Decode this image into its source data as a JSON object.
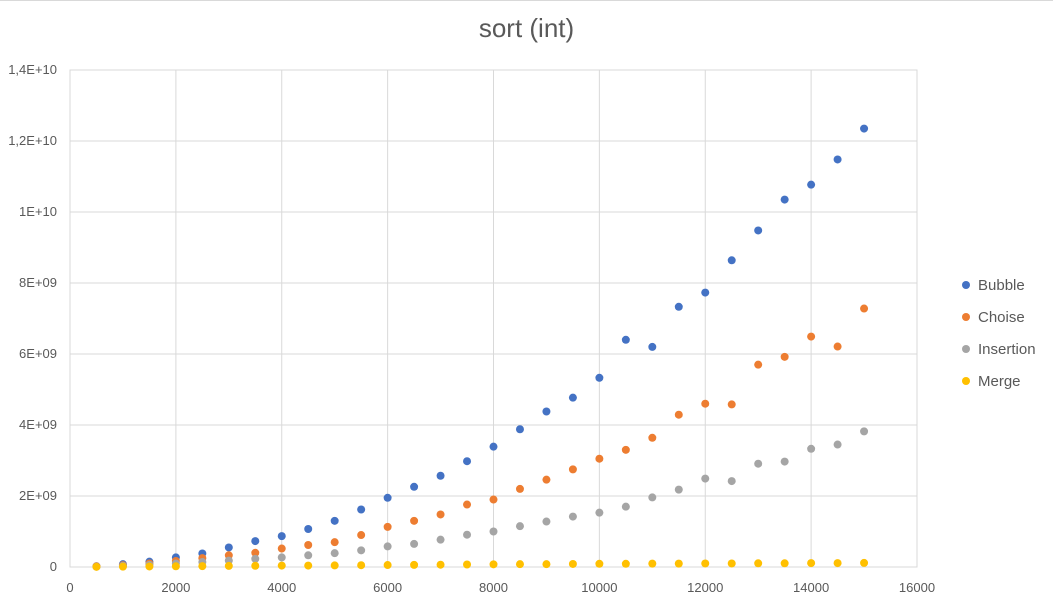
{
  "chart_data": {
    "type": "scatter",
    "title": "sort (int)",
    "xlabel": "",
    "ylabel": "",
    "xlim": [
      0,
      16000
    ],
    "ylim": [
      0,
      14000000000
    ],
    "x_ticks": [
      0,
      2000,
      4000,
      6000,
      8000,
      10000,
      12000,
      14000,
      16000
    ],
    "x_tick_labels": [
      "0",
      "2000",
      "4000",
      "6000",
      "8000",
      "10000",
      "12000",
      "14000",
      "16000"
    ],
    "y_ticks": [
      0,
      2000000000,
      4000000000,
      6000000000,
      8000000000,
      10000000000,
      12000000000,
      14000000000
    ],
    "y_tick_labels": [
      "0",
      "2E+09",
      "4E+09",
      "6E+09",
      "8E+09",
      "1E+10",
      "1,2E+10",
      "1,4E+10"
    ],
    "grid": true,
    "legend_position": "right",
    "x": [
      500,
      1000,
      1500,
      2000,
      2500,
      3000,
      3500,
      4000,
      4500,
      5000,
      5500,
      6000,
      6500,
      7000,
      7500,
      8000,
      8500,
      9000,
      9500,
      10000,
      10500,
      11000,
      11500,
      12000,
      12500,
      13000,
      13500,
      14000,
      14500,
      15000
    ],
    "series": [
      {
        "name": "Bubble",
        "color": "#4472c4",
        "values": [
          20000000,
          80000000,
          150000000,
          270000000,
          380000000,
          550000000,
          730000000,
          870000000,
          1070000000,
          1300000000,
          1620000000,
          1950000000,
          2260000000,
          2570000000,
          2980000000,
          3390000000,
          3880000000,
          4380000000,
          4770000000,
          5330000000,
          6400000000,
          6200000000,
          7330000000,
          7730000000,
          8640000000,
          9480000000,
          10350000000,
          10770000000,
          11480000000,
          12350000000
        ]
      },
      {
        "name": "Choise",
        "color": "#ed7d31",
        "values": [
          20000000,
          50000000,
          100000000,
          170000000,
          250000000,
          330000000,
          400000000,
          520000000,
          620000000,
          700000000,
          900000000,
          1130000000,
          1300000000,
          1480000000,
          1760000000,
          1900000000,
          2200000000,
          2460000000,
          2750000000,
          3050000000,
          3300000000,
          3640000000,
          4290000000,
          4600000000,
          4580000000,
          5700000000,
          5920000000,
          6490000000,
          6210000000,
          7280000000
        ]
      },
      {
        "name": "Insertion",
        "color": "#a5a5a5",
        "values": [
          10000000,
          30000000,
          60000000,
          100000000,
          140000000,
          180000000,
          230000000,
          270000000,
          330000000,
          390000000,
          470000000,
          580000000,
          650000000,
          770000000,
          910000000,
          1000000000,
          1150000000,
          1280000000,
          1420000000,
          1530000000,
          1700000000,
          1960000000,
          2180000000,
          2490000000,
          2420000000,
          2910000000,
          2970000000,
          3330000000,
          3450000000,
          3820000000
        ]
      },
      {
        "name": "Merge",
        "color": "#ffc000",
        "values": [
          5000000,
          10000000,
          15000000,
          20000000,
          25000000,
          30000000,
          35000000,
          40000000,
          40000000,
          45000000,
          50000000,
          55000000,
          60000000,
          65000000,
          70000000,
          75000000,
          80000000,
          80000000,
          85000000,
          90000000,
          90000000,
          95000000,
          95000000,
          100000000,
          100000000,
          105000000,
          105000000,
          110000000,
          110000000,
          115000000
        ]
      }
    ]
  }
}
